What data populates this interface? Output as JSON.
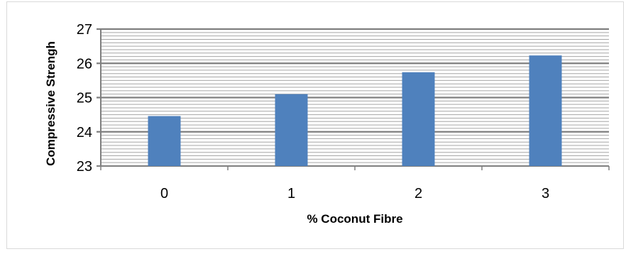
{
  "chart_data": {
    "type": "bar",
    "categories": [
      "0",
      "1",
      "2",
      "3"
    ],
    "values": [
      24.46,
      25.1,
      25.74,
      26.23
    ],
    "xlabel": "% Coconut Fibre",
    "ylabel": "Compressive Strengh",
    "ylim": [
      23,
      27
    ],
    "yticks": [
      "23",
      "24",
      "25",
      "26",
      "27"
    ],
    "bar_color": "#4f81bd",
    "grid": true,
    "legend": "none"
  }
}
